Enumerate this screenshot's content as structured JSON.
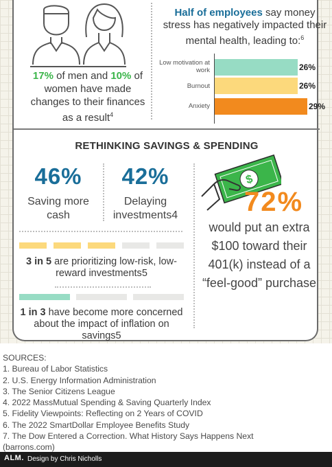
{
  "gender": {
    "men_pct": "17%",
    "text1": " of men and ",
    "women_pct": "10%",
    "text2": " of women have made changes to their finances as a result",
    "ref": "4"
  },
  "stress": {
    "highlight": "Half of employees",
    "text": " say money stress has negatively impacted their mental health, leading to:",
    "ref": "6"
  },
  "stress_bars": [
    {
      "label": "Low motivation at work",
      "value": 26,
      "display": "26%",
      "color": "#97dcc4"
    },
    {
      "label": "Burnout",
      "value": 26,
      "display": "26%",
      "color": "#fcd97c"
    },
    {
      "label": "Anxiety",
      "value": 29,
      "display": "29%",
      "color": "#f28a1e"
    }
  ],
  "section_title": "RETHINKING SAVINGS & SPENDING",
  "saving_cash": {
    "pct": "46%",
    "label": "Saving more cash"
  },
  "delaying": {
    "pct": "42%",
    "label": "Delaying investments",
    "ref": "4"
  },
  "three_in_five": {
    "strong": "3 in 5",
    "text": " are prioritizing low-risk, low-reward investments",
    "ref": "5",
    "filled": 3,
    "total": 5
  },
  "one_in_three": {
    "strong": "1 in 3",
    "text": " have become more concerned about the impact of inflation on savings",
    "ref": "5",
    "filled": 1,
    "total": 3
  },
  "money_icon": {
    "symbol": "$",
    "bill_color": "#3bb54a"
  },
  "big_stat": {
    "pct": "72%",
    "text": "would put an extra $100 toward their 401(k) instead of a “feel-good” purchase"
  },
  "sources": {
    "title": "SOURCES:",
    "items": [
      "1. Bureau of Labor Statistics",
      "2. U.S. Energy Information Administration",
      "3. The Senior Citizens League",
      "4. 2022 MassMutual Spending & Saving Quarterly Index",
      "5. Fidelity Viewpoints: Reflecting on 2 Years of COVID",
      "6. The 2022 SmartDollar Employee Benefits Study",
      "7. The Dow Entered a Correction. What History Says Happens Next",
      "(barrons.com)"
    ]
  },
  "footer": {
    "logo": "ALM.",
    "credit": "Design by Chris Nicholls"
  },
  "colors": {
    "blue": "#1a6e99",
    "green": "#3bb54a",
    "orange": "#f28a1e",
    "teal": "#97dcc4",
    "yellow": "#fcd97c"
  }
}
